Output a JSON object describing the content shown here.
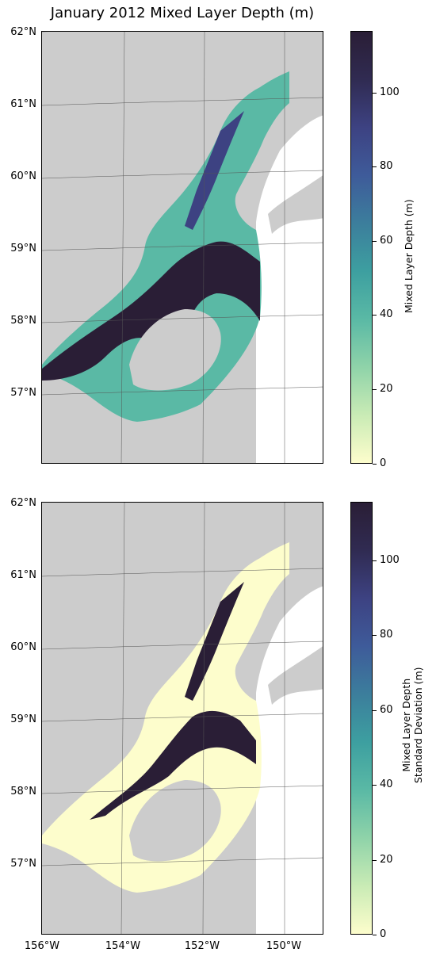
{
  "title": "January 2012 Mixed Layer Depth (m)",
  "latitude_labels": [
    "62°N",
    "61°N",
    "60°N",
    "59°N",
    "58°N",
    "57°N"
  ],
  "longitude_labels": [
    "156°W",
    "154°W",
    "152°W",
    "150°W"
  ],
  "colors": {
    "land": "#cccccc",
    "ocean": "#ffffff",
    "colormap": [
      "#fdfdcc",
      "#c9ebb5",
      "#8fd3a9",
      "#5ab9a5",
      "#3d9fa0",
      "#3c7e9c",
      "#3e5b9a",
      "#3d4282",
      "#302b52",
      "#2a1e36"
    ]
  },
  "panels": [
    {
      "colorbar": {
        "label_lines": [
          "Mixed Layer Depth (m)"
        ],
        "ticks": [
          "0",
          "20",
          "40",
          "60",
          "80",
          "100"
        ],
        "range": [
          0,
          115
        ]
      }
    },
    {
      "colorbar": {
        "label_lines": [
          "Mixed Layer Depth",
          "Standard Deviation (m)"
        ],
        "ticks": [
          "0",
          "20",
          "40",
          "60",
          "80",
          "100"
        ],
        "range": [
          0,
          114
        ]
      }
    }
  ]
}
